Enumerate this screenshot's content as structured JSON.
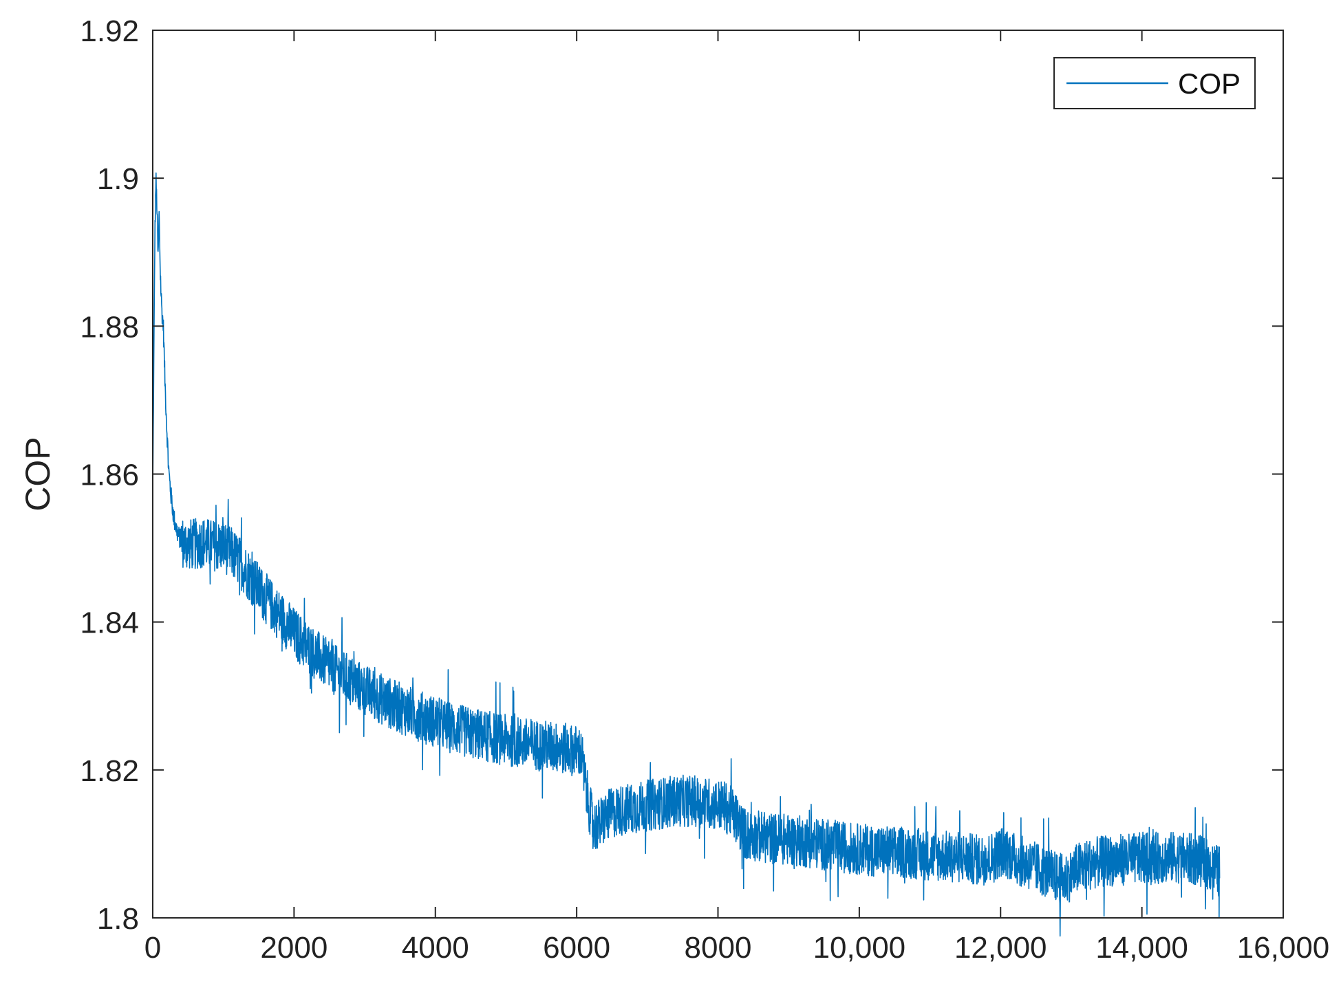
{
  "chart_data": {
    "type": "line",
    "title": "",
    "xlabel": "",
    "ylabel": "COP",
    "xlim": [
      0,
      16000
    ],
    "ylim": [
      1.8,
      1.92
    ],
    "grid": false,
    "legend_position": "top-right",
    "x_ticks": [
      0,
      2000,
      4000,
      6000,
      8000,
      10000,
      12000,
      14000,
      16000
    ],
    "x_tick_labels": [
      "0",
      "2000",
      "4000",
      "6000",
      "8000",
      "10,000",
      "12,000",
      "14,000",
      "16,000"
    ],
    "y_ticks": [
      1.8,
      1.82,
      1.84,
      1.86,
      1.88,
      1.9,
      1.92
    ],
    "y_tick_labels": [
      "1.8",
      "1.82",
      "1.84",
      "1.86",
      "1.88",
      "1.9",
      "1.92"
    ],
    "colors": {
      "series": "#0072BD",
      "axis": "#262626"
    },
    "series": [
      {
        "name": "COP",
        "noise_band": 0.0035,
        "x": [
          0,
          15,
          30,
          45,
          60,
          75,
          90,
          110,
          130,
          150,
          175,
          200,
          230,
          260,
          300,
          350,
          400,
          450,
          500,
          600,
          700,
          800,
          900,
          1000,
          1100,
          1200,
          1300,
          1400,
          1500,
          1600,
          1700,
          1800,
          1900,
          2000,
          2200,
          2400,
          2600,
          2800,
          3000,
          3200,
          3400,
          3600,
          3800,
          4000,
          4200,
          4400,
          4600,
          4800,
          5000,
          5200,
          5400,
          5600,
          5800,
          6000,
          6050,
          6080,
          6100,
          6150,
          6200,
          6250,
          6300,
          6400,
          6500,
          6600,
          6800,
          7000,
          7200,
          7400,
          7600,
          7800,
          8000,
          8100,
          8200,
          8300,
          8350,
          8400,
          8500,
          8700,
          9000,
          9300,
          9600,
          9900,
          10200,
          10500,
          10800,
          11100,
          11400,
          11700,
          11900,
          12000,
          12100,
          12200,
          12400,
          12600,
          12800,
          12900,
          13000,
          13100,
          13300,
          13600,
          13900,
          14200,
          14500,
          14800,
          15000,
          15100
        ],
        "values": [
          1.857,
          1.875,
          1.892,
          1.9,
          1.896,
          1.889,
          1.895,
          1.886,
          1.882,
          1.88,
          1.872,
          1.866,
          1.86,
          1.857,
          1.854,
          1.852,
          1.851,
          1.8505,
          1.8505,
          1.8505,
          1.8508,
          1.8505,
          1.8503,
          1.8502,
          1.8495,
          1.8485,
          1.8472,
          1.8458,
          1.8445,
          1.8432,
          1.842,
          1.8408,
          1.8397,
          1.8385,
          1.8365,
          1.8348,
          1.8333,
          1.832,
          1.8308,
          1.8298,
          1.8288,
          1.828,
          1.8272,
          1.8265,
          1.8258,
          1.8252,
          1.8248,
          1.8244,
          1.824,
          1.8237,
          1.8234,
          1.8232,
          1.8229,
          1.8226,
          1.8224,
          1.8215,
          1.8195,
          1.8165,
          1.814,
          1.8125,
          1.8125,
          1.8135,
          1.8142,
          1.8145,
          1.8148,
          1.8152,
          1.8155,
          1.8158,
          1.8158,
          1.8156,
          1.8153,
          1.815,
          1.8142,
          1.8128,
          1.8118,
          1.8112,
          1.8112,
          1.8108,
          1.8106,
          1.8102,
          1.8098,
          1.8094,
          1.8091,
          1.8089,
          1.8087,
          1.8084,
          1.8082,
          1.8078,
          1.8082,
          1.809,
          1.8088,
          1.808,
          1.8072,
          1.8064,
          1.8054,
          1.8052,
          1.8058,
          1.8068,
          1.8074,
          1.8078,
          1.808,
          1.8081,
          1.8082,
          1.8078,
          1.8068,
          1.8062
        ]
      }
    ]
  }
}
